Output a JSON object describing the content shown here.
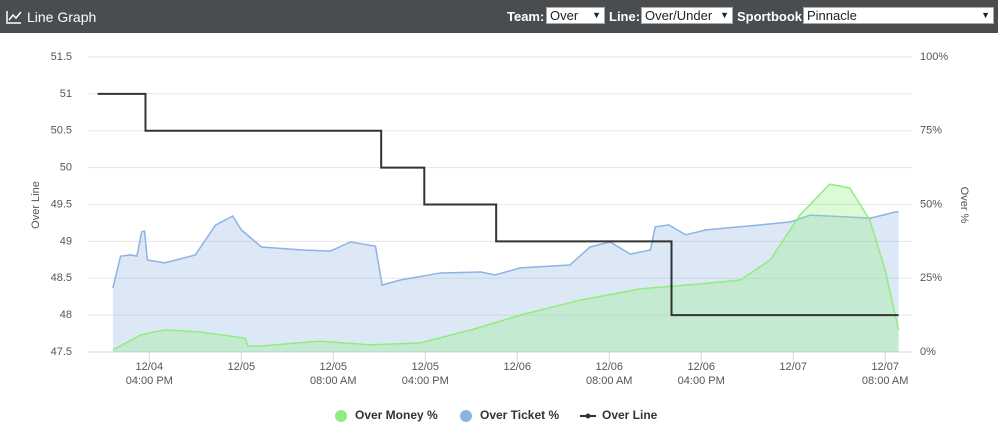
{
  "header": {
    "title": "Line Graph",
    "team_label": "Team:",
    "team_value": "Over",
    "line_label": "Line:",
    "line_value": "Over/Under",
    "sportbook_label": "Sportbook:",
    "sportbook_value": "Pinnacle"
  },
  "chart_data": {
    "type": "line",
    "ylabel": "Over Line",
    "y2label": "Over %",
    "xlim": [
      "12/04 10:40 AM",
      "12/07 10:20 AM"
    ],
    "xticks": [
      {
        "value": "12/04 04:00 PM",
        "label": [
          "12/04",
          "04:00 PM"
        ]
      },
      {
        "value": "12/05 12:00 AM",
        "label": [
          "12/05"
        ]
      },
      {
        "value": "12/05 08:00 AM",
        "label": [
          "12/05",
          "08:00 AM"
        ]
      },
      {
        "value": "12/05 04:00 PM",
        "label": [
          "12/05",
          "04:00 PM"
        ]
      },
      {
        "value": "12/06 12:00 AM",
        "label": [
          "12/06"
        ]
      },
      {
        "value": "12/06 08:00 AM",
        "label": [
          "12/06",
          "08:00 AM"
        ]
      },
      {
        "value": "12/06 04:00 PM",
        "label": [
          "12/06",
          "04:00 PM"
        ]
      },
      {
        "value": "12/07 12:00 AM",
        "label": [
          "12/07"
        ]
      },
      {
        "value": "12/07 08:00 AM",
        "label": [
          "12/07",
          "08:00 AM"
        ]
      }
    ],
    "ylim": [
      47.5,
      51.5
    ],
    "yticks": [
      47.5,
      48,
      48.5,
      49,
      49.5,
      50,
      50.5,
      51,
      51.5
    ],
    "y2lim": [
      0,
      100
    ],
    "y2ticks": [
      {
        "value": 0,
        "label": "0%"
      },
      {
        "value": 25,
        "label": "25%"
      },
      {
        "value": 50,
        "label": "50%"
      },
      {
        "value": 75,
        "label": "75%"
      },
      {
        "value": 100,
        "label": "100%"
      }
    ],
    "grid": true,
    "legend": "bottom",
    "series": [
      {
        "name": "Over Money %",
        "color": "#90ed7d",
        "axis": "y2",
        "area": true,
        "x": [
          "12/04 12:50 PM",
          "12/04 03:15 PM",
          "12/04 05:20 PM",
          "12/04 08:25 PM",
          "12/05 12:20 AM",
          "12/05 12:35 AM",
          "12/05 01:35 AM",
          "12/05 06:50 AM",
          "12/05 11:10 AM",
          "12/05 03:35 PM",
          "12/05 08:00 PM",
          "12/06 12:15 AM",
          "12/06 05:30 AM",
          "12/06 10:40 AM",
          "12/06 03:55 PM",
          "12/06 07:25 PM",
          "12/06 10:00 PM",
          "12/07 12:35 AM",
          "12/07 03:10 AM",
          "12/07 04:55 AM",
          "12/07 06:40 AM",
          "12/07 08:00 AM",
          "12/07 09:10 AM"
        ],
        "values": [
          0.7,
          5.8,
          7.5,
          6.8,
          4.7,
          2.0,
          2.0,
          3.7,
          2.4,
          3.1,
          7.5,
          12.5,
          17.6,
          21.4,
          23.1,
          24.4,
          31.2,
          46.4,
          56.9,
          55.6,
          44.7,
          27.8,
          7.5
        ]
      },
      {
        "name": "Over Ticket %",
        "color": "#8eb3e3",
        "axis": "y2",
        "area": true,
        "x": [
          "12/04 12:50 PM",
          "12/04 01:30 PM",
          "12/04 02:20 PM",
          "12/04 02:55 PM",
          "12/04 03:20 PM",
          "12/04 03:35 PM",
          "12/04 03:50 PM",
          "12/04 05:20 PM",
          "12/04 08:00 PM",
          "12/04 09:45 PM",
          "12/04 11:15 PM",
          "12/05 12:00 AM",
          "12/05 01:45 AM",
          "12/05 05:10 AM",
          "12/05 07:45 AM",
          "12/05 09:30 AM",
          "12/05 11:40 AM",
          "12/05 12:15 PM",
          "12/05 01:50 PM",
          "12/05 05:20 PM",
          "12/05 08:50 PM",
          "12/05 10:05 PM",
          "12/06 12:15 AM",
          "12/06 04:35 AM",
          "12/06 06:20 AM",
          "12/06 08:05 AM",
          "12/06 09:50 AM",
          "12/06 11:35 AM",
          "12/06 12:00 PM",
          "12/06 01:10 PM",
          "12/06 02:40 PM",
          "12/06 04:25 PM",
          "12/06 09:10 PM",
          "12/06 11:45 PM",
          "12/07 01:30 AM",
          "12/07 06:45 AM",
          "12/07 08:55 AM",
          "12/07 09:10 AM"
        ],
        "values": [
          21.7,
          32.5,
          32.9,
          32.5,
          40.7,
          41.0,
          31.2,
          30.2,
          32.9,
          43.0,
          46.1,
          41.4,
          35.6,
          34.6,
          34.2,
          37.3,
          35.9,
          22.7,
          24.4,
          26.8,
          27.1,
          26.1,
          28.5,
          29.5,
          35.6,
          37.3,
          33.2,
          34.6,
          42.4,
          43.1,
          39.7,
          41.4,
          43.1,
          44.1,
          46.4,
          45.4,
          47.5,
          47.5
        ]
      },
      {
        "name": "Over Line",
        "color": "#333333",
        "axis": "y",
        "step": true,
        "x": [
          "12/04 11:30 AM",
          "12/04 03:40 PM",
          "12/05 12:10 PM",
          "12/05 03:55 PM",
          "12/05 10:10 PM",
          "12/06 01:25 PM",
          "12/07 09:10 AM"
        ],
        "values": [
          51,
          50.5,
          50,
          49.5,
          49,
          48,
          48
        ]
      }
    ]
  }
}
